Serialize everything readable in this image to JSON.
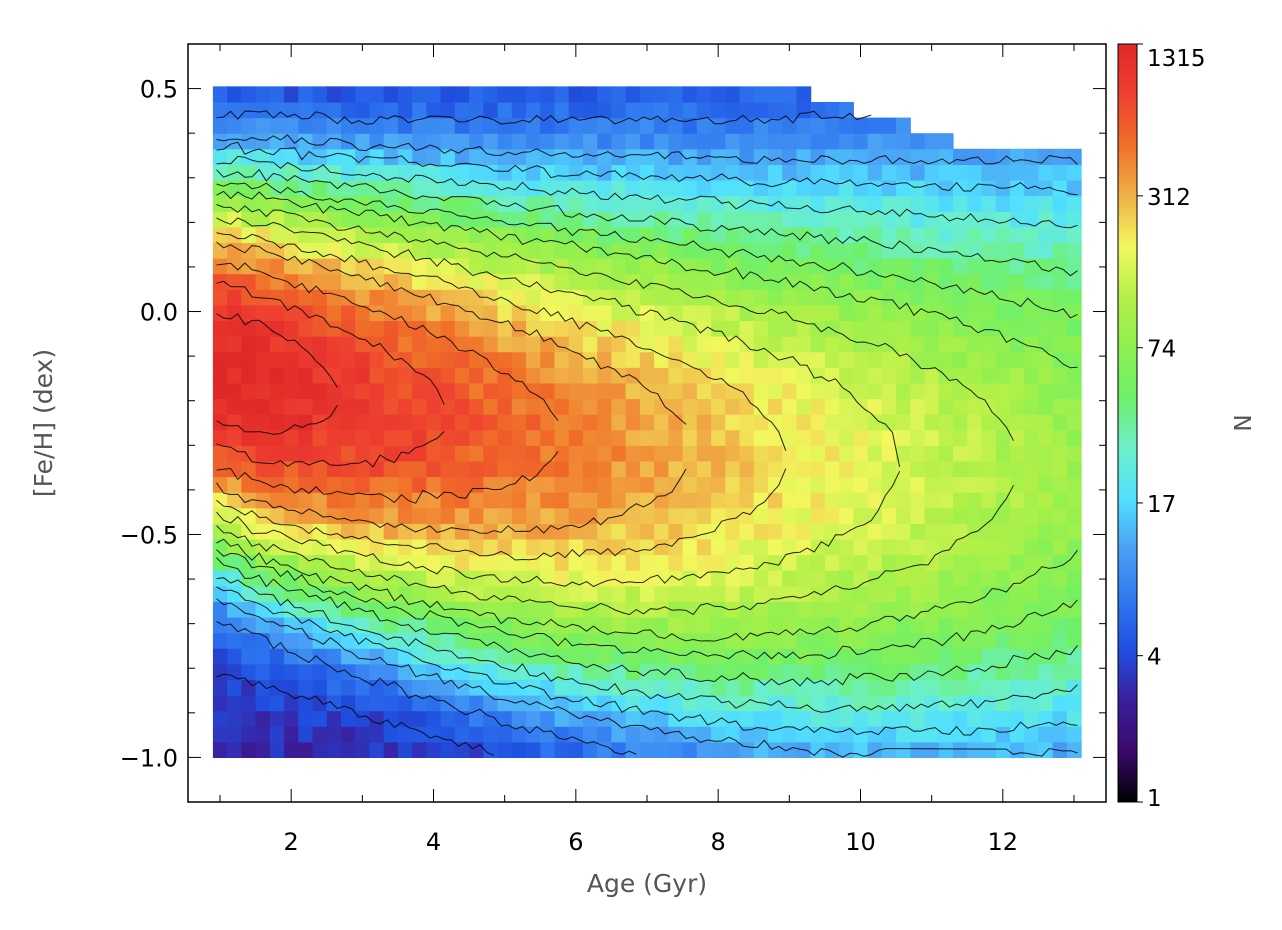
{
  "chart_data": {
    "type": "heatmap",
    "subtype": "filled-contour",
    "title": "",
    "xlabel": "Age (Gyr)",
    "ylabel": "[Fe/H] (dex)",
    "xlim": [
      0.55,
      13.45
    ],
    "ylim": [
      -1.1,
      0.6
    ],
    "xticks": [
      {
        "value": 2,
        "label": "2"
      },
      {
        "value": 4,
        "label": "4"
      },
      {
        "value": 6,
        "label": "6"
      },
      {
        "value": 8,
        "label": "8"
      },
      {
        "value": 10,
        "label": "10"
      },
      {
        "value": 12,
        "label": "12"
      }
    ],
    "yticks": [
      {
        "value": 0.5,
        "label": "0.5"
      },
      {
        "value": 0.0,
        "label": "0.0"
      },
      {
        "value": -0.5,
        "label": "−0.5"
      },
      {
        "value": -1.0,
        "label": "−1.0"
      }
    ],
    "data_extent": {
      "age": [
        0.9,
        13.1
      ],
      "feh": [
        -1.0,
        0.5
      ]
    },
    "grid": false,
    "colorbar": {
      "title": "N",
      "scale": "log",
      "min": 1,
      "max": 1315,
      "ticks": [
        {
          "value": 1315,
          "label": "1315"
        },
        {
          "value": 312,
          "label": "312"
        },
        {
          "value": 74,
          "label": "74"
        },
        {
          "value": 17,
          "label": "17"
        },
        {
          "value": 4,
          "label": "4"
        },
        {
          "value": 1,
          "label": "1"
        }
      ],
      "colormap": [
        "#000000",
        "#3a0a6a",
        "#3b1e9c",
        "#1f4fe0",
        "#2f78f0",
        "#4aa0f4",
        "#50e0ff",
        "#6cf0c8",
        "#6ef06a",
        "#8ef050",
        "#b4f048",
        "#f2f85e",
        "#f0b048",
        "#f07028",
        "#ee4030",
        "#e02828"
      ]
    },
    "contour_levels": [
      2,
      4,
      7,
      12,
      17,
      25,
      38,
      55,
      74,
      110,
      160,
      230,
      312,
      480,
      700,
      1000
    ],
    "density_peak": {
      "age": 1.5,
      "feh": -0.15,
      "N": 1315
    }
  }
}
